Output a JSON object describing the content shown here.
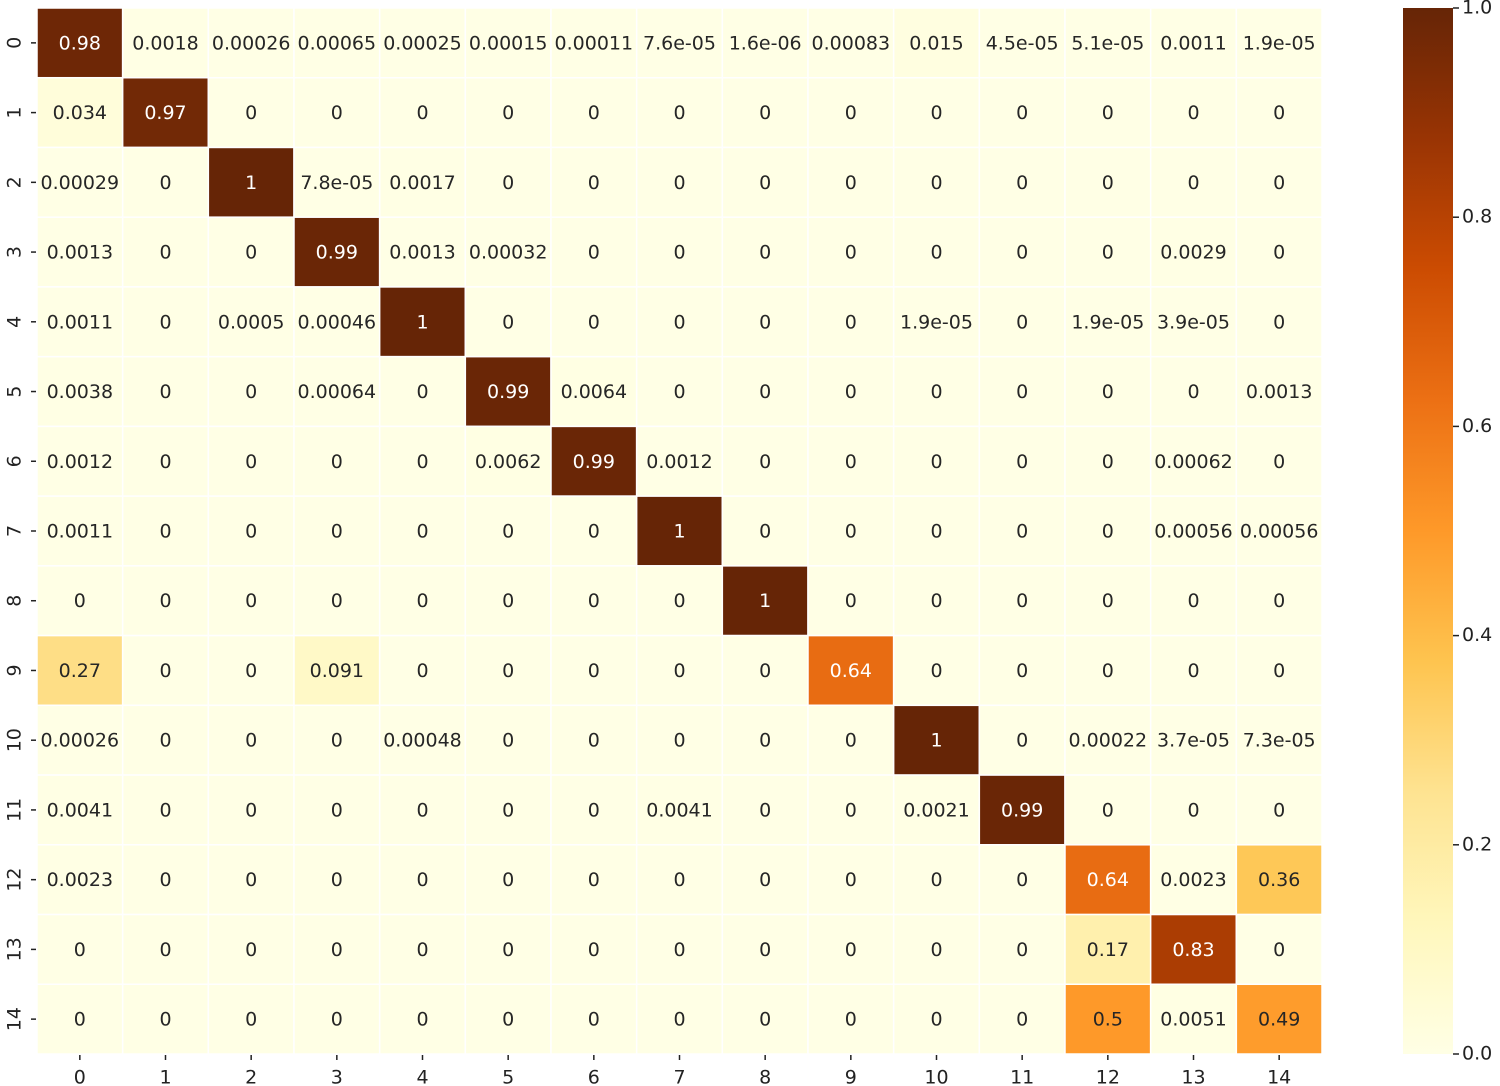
{
  "chart_data": {
    "type": "heatmap",
    "title": "",
    "xlabel": "",
    "ylabel": "",
    "x_labels": [
      "0",
      "1",
      "2",
      "3",
      "4",
      "5",
      "6",
      "7",
      "8",
      "9",
      "10",
      "11",
      "12",
      "13",
      "14"
    ],
    "y_labels": [
      "0",
      "1",
      "2",
      "3",
      "4",
      "5",
      "6",
      "7",
      "8",
      "9",
      "10",
      "11",
      "12",
      "13",
      "14"
    ],
    "values": [
      [
        0.98,
        0.0018,
        0.00026,
        0.00065,
        0.00025,
        0.00015,
        0.00011,
        7.6e-05,
        1.6e-06,
        0.00083,
        0.015,
        4.5e-05,
        5.1e-05,
        0.0011,
        1.9e-05
      ],
      [
        0.034,
        0.97,
        0,
        0,
        0,
        0,
        0,
        0,
        0,
        0,
        0,
        0,
        0,
        0,
        0
      ],
      [
        0.00029,
        0,
        1,
        7.8e-05,
        0.0017,
        0,
        0,
        0,
        0,
        0,
        0,
        0,
        0,
        0,
        0
      ],
      [
        0.0013,
        0,
        0,
        0.99,
        0.0013,
        0.00032,
        0,
        0,
        0,
        0,
        0,
        0,
        0,
        0.0029,
        0
      ],
      [
        0.0011,
        0,
        0.0005,
        0.00046,
        1,
        0,
        0,
        0,
        0,
        0,
        1.9e-05,
        0,
        1.9e-05,
        3.9e-05,
        0
      ],
      [
        0.0038,
        0,
        0,
        0.00064,
        0,
        0.99,
        0.0064,
        0,
        0,
        0,
        0,
        0,
        0,
        0,
        0.0013
      ],
      [
        0.0012,
        0,
        0,
        0,
        0,
        0.0062,
        0.99,
        0.0012,
        0,
        0,
        0,
        0,
        0,
        0.00062,
        0
      ],
      [
        0.0011,
        0,
        0,
        0,
        0,
        0,
        0,
        1,
        0,
        0,
        0,
        0,
        0,
        0.00056,
        0.00056
      ],
      [
        0,
        0,
        0,
        0,
        0,
        0,
        0,
        0,
        1,
        0,
        0,
        0,
        0,
        0,
        0
      ],
      [
        0.27,
        0,
        0,
        0.091,
        0,
        0,
        0,
        0,
        0,
        0.64,
        0,
        0,
        0,
        0,
        0
      ],
      [
        0.00026,
        0,
        0,
        0,
        0.00048,
        0,
        0,
        0,
        0,
        0,
        1,
        0,
        0.00022,
        3.7e-05,
        7.3e-05
      ],
      [
        0.0041,
        0,
        0,
        0,
        0,
        0,
        0,
        0.0041,
        0,
        0,
        0.0021,
        0.99,
        0,
        0,
        0
      ],
      [
        0.0023,
        0,
        0,
        0,
        0,
        0,
        0,
        0,
        0,
        0,
        0,
        0,
        0.64,
        0.0023,
        0.36
      ],
      [
        0,
        0,
        0,
        0,
        0,
        0,
        0,
        0,
        0,
        0,
        0,
        0,
        0.17,
        0.83,
        0
      ],
      [
        0,
        0,
        0,
        0,
        0,
        0,
        0,
        0,
        0,
        0,
        0,
        0,
        0.5,
        0.0051,
        0.49
      ]
    ],
    "annotations": [
      [
        "0.98",
        "0.0018",
        "0.00026",
        "0.00065",
        "0.00025",
        "0.00015",
        "0.00011",
        "7.6e-05",
        "1.6e-06",
        "0.00083",
        "0.015",
        "4.5e-05",
        "5.1e-05",
        "0.0011",
        "1.9e-05"
      ],
      [
        "0.034",
        "0.97",
        "0",
        "0",
        "0",
        "0",
        "0",
        "0",
        "0",
        "0",
        "0",
        "0",
        "0",
        "0",
        "0"
      ],
      [
        "0.00029",
        "0",
        "1",
        "7.8e-05",
        "0.0017",
        "0",
        "0",
        "0",
        "0",
        "0",
        "0",
        "0",
        "0",
        "0",
        "0"
      ],
      [
        "0.0013",
        "0",
        "0",
        "0.99",
        "0.0013",
        "0.00032",
        "0",
        "0",
        "0",
        "0",
        "0",
        "0",
        "0",
        "0.0029",
        "0"
      ],
      [
        "0.0011",
        "0",
        "0.0005",
        "0.00046",
        "1",
        "0",
        "0",
        "0",
        "0",
        "0",
        "1.9e-05",
        "0",
        "1.9e-05",
        "3.9e-05",
        "0"
      ],
      [
        "0.0038",
        "0",
        "0",
        "0.00064",
        "0",
        "0.99",
        "0.0064",
        "0",
        "0",
        "0",
        "0",
        "0",
        "0",
        "0",
        "0.0013"
      ],
      [
        "0.0012",
        "0",
        "0",
        "0",
        "0",
        "0.0062",
        "0.99",
        "0.0012",
        "0",
        "0",
        "0",
        "0",
        "0",
        "0.00062",
        "0"
      ],
      [
        "0.0011",
        "0",
        "0",
        "0",
        "0",
        "0",
        "0",
        "1",
        "0",
        "0",
        "0",
        "0",
        "0",
        "0.00056",
        "0.00056"
      ],
      [
        "0",
        "0",
        "0",
        "0",
        "0",
        "0",
        "0",
        "0",
        "1",
        "0",
        "0",
        "0",
        "0",
        "0",
        "0"
      ],
      [
        "0.27",
        "0",
        "0",
        "0.091",
        "0",
        "0",
        "0",
        "0",
        "0",
        "0.64",
        "0",
        "0",
        "0",
        "0",
        "0"
      ],
      [
        "0.00026",
        "0",
        "0",
        "0",
        "0.00048",
        "0",
        "0",
        "0",
        "0",
        "0",
        "1",
        "0",
        "0.00022",
        "3.7e-05",
        "7.3e-05"
      ],
      [
        "0.0041",
        "0",
        "0",
        "0",
        "0",
        "0",
        "0",
        "0.0041",
        "0",
        "0",
        "0.0021",
        "0.99",
        "0",
        "0",
        "0"
      ],
      [
        "0.0023",
        "0",
        "0",
        "0",
        "0",
        "0",
        "0",
        "0",
        "0",
        "0",
        "0",
        "0",
        "0.64",
        "0.0023",
        "0.36"
      ],
      [
        "0",
        "0",
        "0",
        "0",
        "0",
        "0",
        "0",
        "0",
        "0",
        "0",
        "0",
        "0",
        "0.17",
        "0.83",
        "0"
      ],
      [
        "0",
        "0",
        "0",
        "0",
        "0",
        "0",
        "0",
        "0",
        "0",
        "0",
        "0",
        "0",
        "0.5",
        "0.0051",
        "0.49"
      ]
    ],
    "colorbar": {
      "vmin": 0.0,
      "vmax": 1.0,
      "ticks": [
        0.0,
        0.2,
        0.4,
        0.6,
        0.8,
        1.0
      ],
      "tick_labels": [
        "0.0",
        "0.2",
        "0.4",
        "0.6",
        "0.8",
        "1.0"
      ],
      "colormap": "YlOrBr"
    },
    "colormap_stops": [
      "#ffffe5",
      "#fff7bc",
      "#fee391",
      "#fec44f",
      "#fe9929",
      "#ec7014",
      "#cc4c02",
      "#993404",
      "#662506"
    ],
    "cell_border_color": "#ffffff",
    "text_dark": "#262626",
    "text_light": "#ffffff",
    "grid": false,
    "legend": "none"
  }
}
